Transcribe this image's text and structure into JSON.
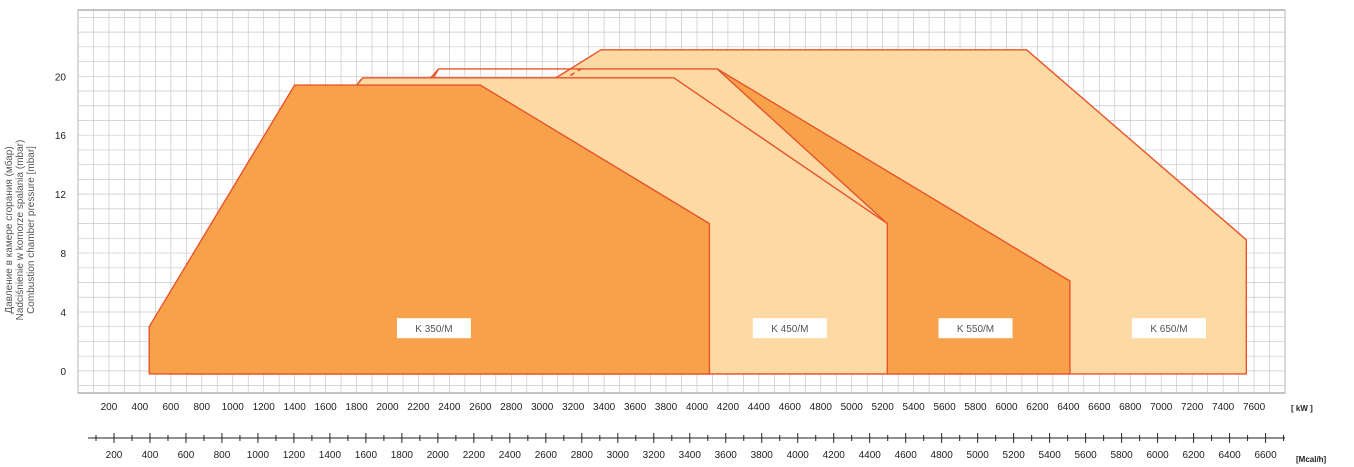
{
  "chart_data": {
    "type": "area",
    "ylabel": [
      "Давление в камере сгорания (мбар)",
      "Nadciśnienie w komorze spalania (mbar)",
      "Combustion chamber pressure [mbar]"
    ],
    "x_unit": "[ kW ]",
    "x2_unit": "[Mcal/h]",
    "ylim": [
      -1.5,
      24.5
    ],
    "xlim": [
      0,
      7800
    ],
    "y_ticks": [
      0,
      4,
      8,
      12,
      16,
      20
    ],
    "x_ticks": [
      200,
      400,
      600,
      800,
      1000,
      1200,
      1400,
      1600,
      1800,
      2000,
      2200,
      2400,
      2600,
      2800,
      3000,
      3200,
      3400,
      3600,
      3800,
      4000,
      4200,
      4400,
      4600,
      4800,
      5000,
      5200,
      5400,
      5600,
      5800,
      6000,
      6200,
      6400,
      6600,
      6800,
      7000,
      7200,
      7400,
      7600
    ],
    "x2_ticks": [
      200,
      400,
      600,
      800,
      1000,
      1200,
      1400,
      1600,
      1800,
      2000,
      2200,
      2400,
      2600,
      2800,
      3000,
      3200,
      3400,
      3600,
      3800,
      4000,
      4200,
      4400,
      4600,
      4800,
      5000,
      5200,
      5400,
      5600,
      5800,
      6000,
      6200,
      6400,
      6600
    ],
    "x2_factor": 0.86,
    "grid": true,
    "series": [
      {
        "name": "K 650/M",
        "label_at": [
          7050,
          2.9
        ],
        "fill": "#fdd9a3",
        "polygon": [
          [
            700,
            -0.2
          ],
          [
            700,
            4.3
          ],
          [
            3380,
            21.8
          ],
          [
            6130,
            21.8
          ],
          [
            7550,
            8.9
          ],
          [
            7550,
            -0.2
          ]
        ],
        "dashed": [
          [
            700,
            -0.2
          ],
          [
            700,
            4.3
          ]
        ]
      },
      {
        "name": "K 550/M",
        "label_at": [
          5800,
          2.9
        ],
        "fill": "#f7a24a",
        "polygon": [
          [
            1200,
            -0.2
          ],
          [
            1200,
            7
          ],
          [
            2330,
            20.5
          ],
          [
            4130,
            20.5
          ],
          [
            6410,
            6.1
          ],
          [
            6410,
            -0.2
          ],
          [
            5230,
            -0.2
          ],
          [
            5230,
            10
          ],
          [
            4130,
            20.5
          ],
          [
            2330,
            20.5
          ]
        ],
        "dashed": [
          [
            1200,
            -0.2
          ],
          [
            1200,
            7
          ],
          [
            3250,
            20.5
          ]
        ]
      },
      {
        "name": "K 450/M",
        "label_at": [
          4600,
          2.9
        ],
        "fill": "#fdd9a3",
        "polygon": [
          [
            580,
            -0.2
          ],
          [
            580,
            4.1
          ],
          [
            1840,
            19.9
          ],
          [
            3850,
            19.9
          ],
          [
            5230,
            10
          ],
          [
            5230,
            -0.2
          ]
        ],
        "dashed": [
          [
            580,
            -0.2
          ],
          [
            580,
            4.1
          ],
          [
            1840,
            19.9
          ]
        ]
      },
      {
        "name": "K 350/M",
        "label_at": [
          2300,
          2.9
        ],
        "fill": "#f7a24a",
        "polygon": [
          [
            460,
            -0.2
          ],
          [
            460,
            3
          ],
          [
            1400,
            19.4
          ],
          [
            2600,
            19.4
          ],
          [
            4080,
            10
          ],
          [
            4080,
            -0.2
          ]
        ],
        "dashed": []
      }
    ]
  }
}
